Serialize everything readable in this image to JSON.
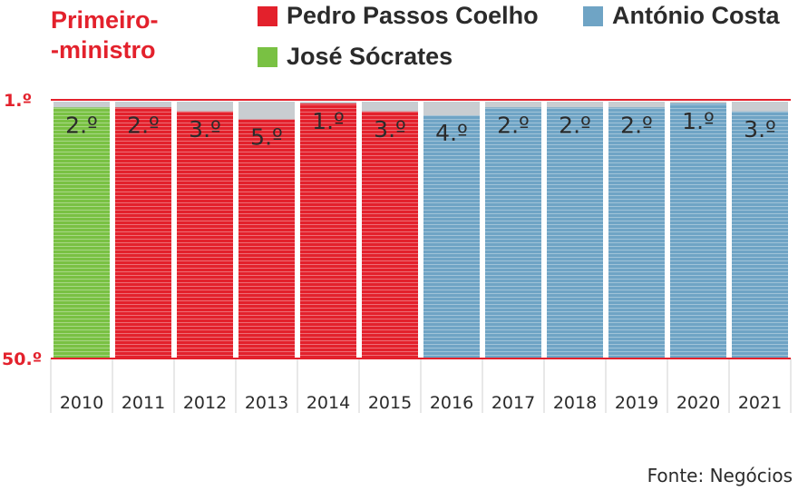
{
  "title_lines": [
    "Primeiro-",
    "-ministro"
  ],
  "legend": [
    {
      "label": "Pedro Passos Coelho",
      "color": "#e3212c"
    },
    {
      "label": "António Costa",
      "color": "#6fa4c5"
    },
    {
      "label": "José Sócrates",
      "color": "#79c143"
    }
  ],
  "source": "Fonte: Negócios",
  "chart_data": {
    "type": "bar",
    "categories": [
      "2010",
      "2011",
      "2012",
      "2013",
      "2014",
      "2015",
      "2016",
      "2017",
      "2018",
      "2019",
      "2020",
      "2021"
    ],
    "values": [
      2,
      2,
      3,
      5,
      1,
      3,
      4,
      2,
      2,
      2,
      1,
      3
    ],
    "value_labels": [
      "2.º",
      "2.º",
      "3.º",
      "5.º",
      "1.º",
      "3.º",
      "4.º",
      "2.º",
      "2.º",
      "2.º",
      "1.º",
      "3.º"
    ],
    "bar_colors": [
      "#79c143",
      "#e3212c",
      "#e3212c",
      "#e3212c",
      "#e3212c",
      "#e3212c",
      "#6fa4c5",
      "#6fa4c5",
      "#6fa4c5",
      "#6fa4c5",
      "#6fa4c5",
      "#6fa4c5"
    ],
    "y_axis_reversed": true,
    "ylim": [
      1,
      50
    ],
    "ytick_labels": [
      "1.º",
      "50.º"
    ],
    "axis_color": "#e3212c",
    "background_bar_color": "#c9cdd1"
  }
}
